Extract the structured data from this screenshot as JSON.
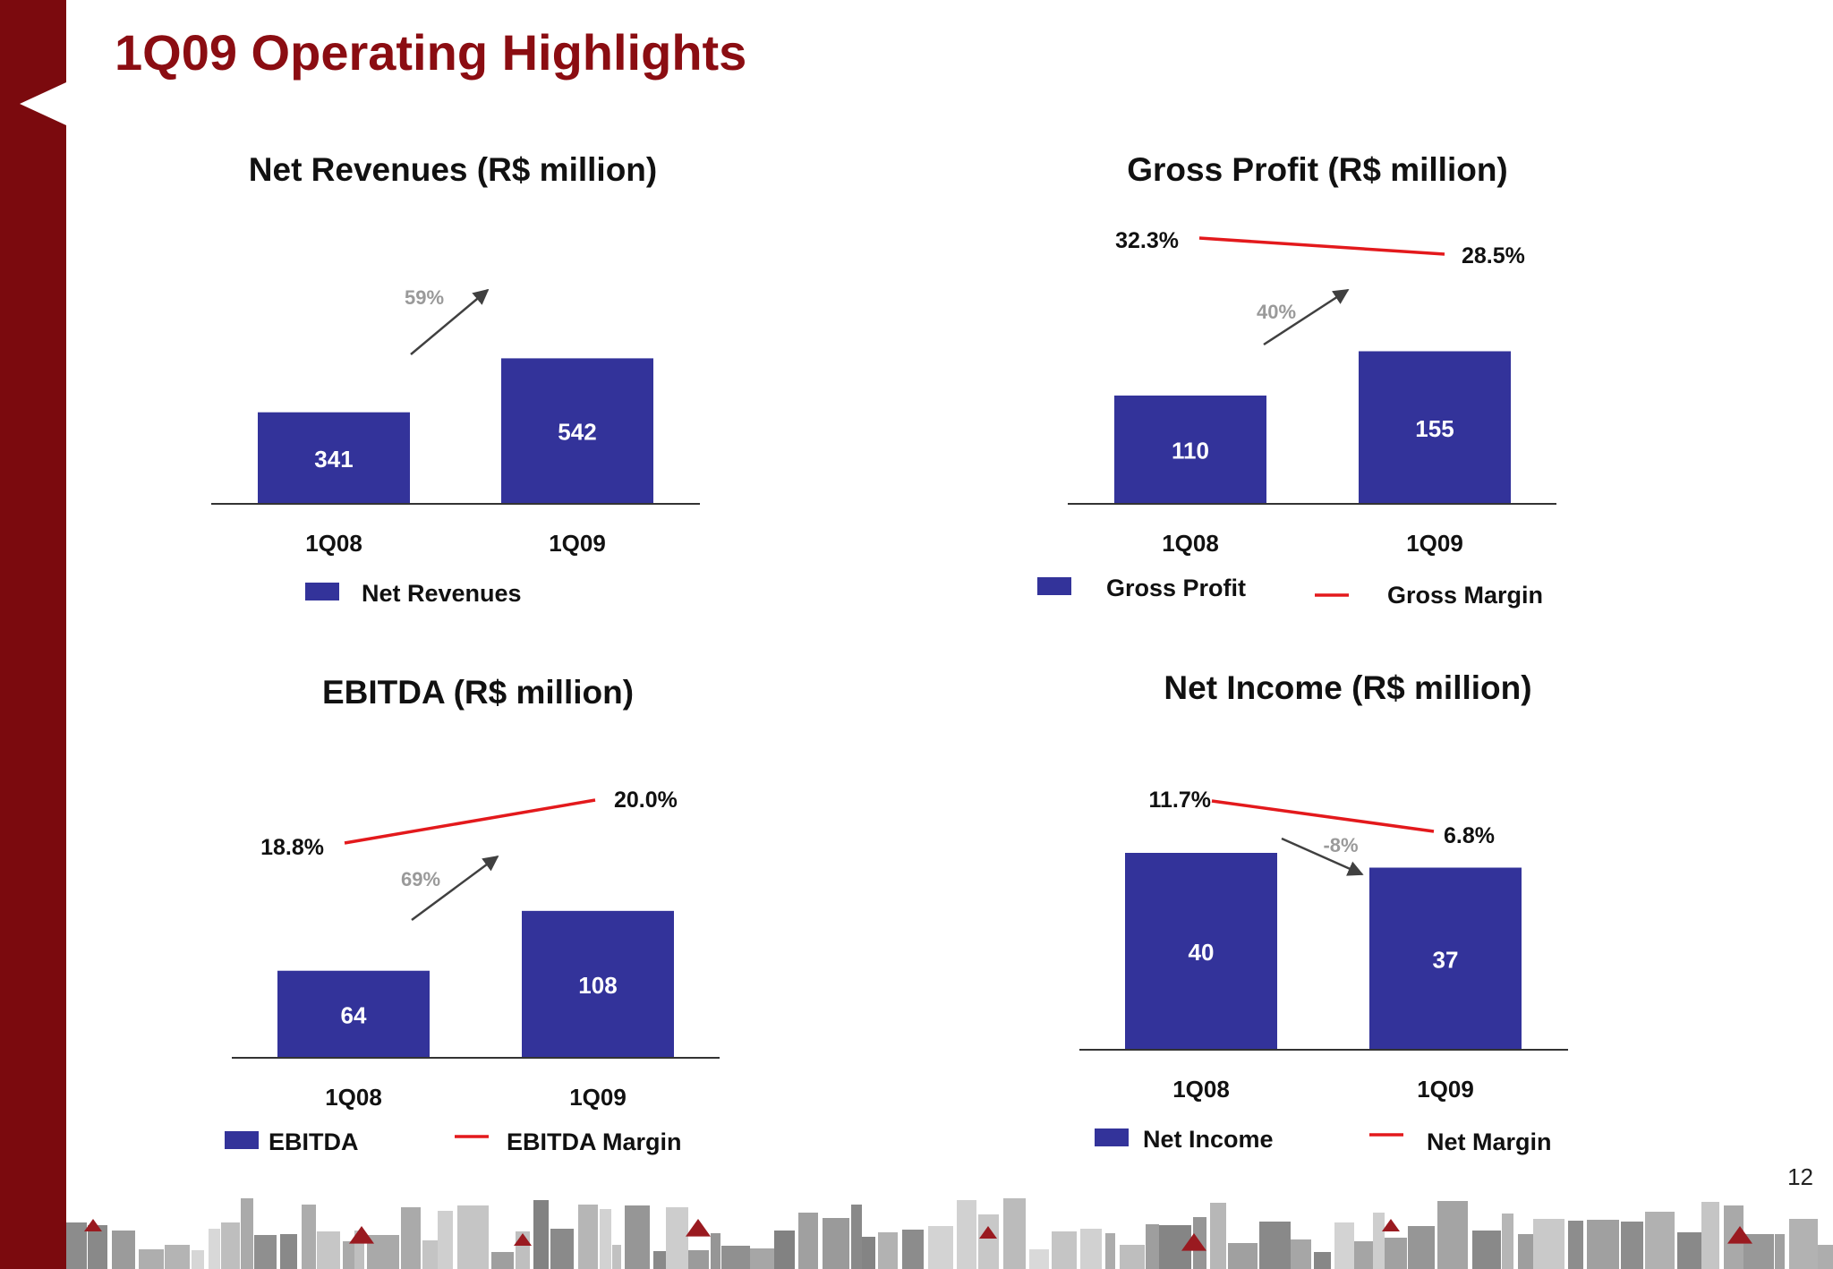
{
  "slide": {
    "title": "1Q09 Operating Highlights",
    "page_number": "12"
  },
  "colors": {
    "bar": "#33339a",
    "margin_line": "#e3191c",
    "arrow": "#404040",
    "growth_label": "#9a9a9a",
    "title": "#8b0d12",
    "sidebar": "#7b0a0e"
  },
  "chart_data": [
    {
      "type": "bar",
      "title": "Net Revenues (R$ million)",
      "categories": [
        "1Q08",
        "1Q09"
      ],
      "series": [
        {
          "name": "Net Revenues",
          "values": [
            341,
            542
          ]
        }
      ],
      "value_labels": [
        "341",
        "542"
      ],
      "growth_label": "59%",
      "legend": [
        "Net Revenues"
      ]
    },
    {
      "type": "bar",
      "title": "Gross Profit (R$ million)",
      "categories": [
        "1Q08",
        "1Q09"
      ],
      "series": [
        {
          "name": "Gross Profit",
          "values": [
            110,
            155
          ]
        },
        {
          "name": "Gross Margin",
          "values": [
            32.3,
            28.5
          ]
        }
      ],
      "value_labels": [
        "110",
        "155"
      ],
      "margin_labels": [
        "32.3%",
        "28.5%"
      ],
      "growth_label": "40%",
      "legend": [
        "Gross Profit",
        "Gross Margin"
      ]
    },
    {
      "type": "bar",
      "title": "EBITDA (R$ million)",
      "categories": [
        "1Q08",
        "1Q09"
      ],
      "series": [
        {
          "name": "EBITDA",
          "values": [
            64,
            108
          ]
        },
        {
          "name": "EBITDA Margin",
          "values": [
            18.8,
            20.0
          ]
        }
      ],
      "value_labels": [
        "64",
        "108"
      ],
      "margin_labels": [
        "18.8%",
        "20.0%"
      ],
      "growth_label": "69%",
      "legend": [
        "EBITDA",
        "EBITDA Margin"
      ]
    },
    {
      "type": "bar",
      "title": "Net Income (R$ million)",
      "categories": [
        "1Q08",
        "1Q09"
      ],
      "series": [
        {
          "name": "Net Income",
          "values": [
            40,
            37
          ]
        },
        {
          "name": "Net Margin",
          "values": [
            11.7,
            6.8
          ]
        }
      ],
      "value_labels": [
        "40",
        "37"
      ],
      "margin_labels": [
        "11.7%",
        "6.8%"
      ],
      "growth_label": "-8%",
      "legend": [
        "Net Income",
        "Net Margin"
      ]
    }
  ]
}
